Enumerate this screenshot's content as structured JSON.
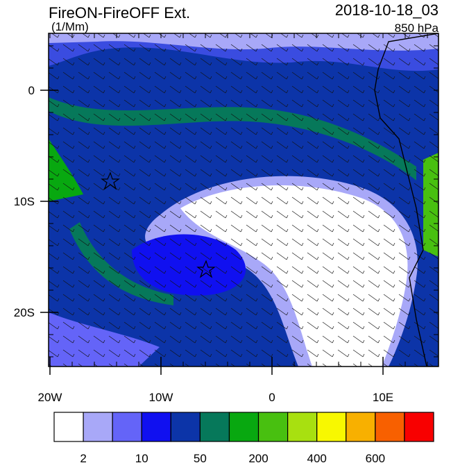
{
  "header": {
    "title": "FireON-FireOFF Ext.",
    "units": "(1/Mm)",
    "date": "2018-10-18_03",
    "level": "850 hPa"
  },
  "map": {
    "lat_labels": [
      "0",
      "10S",
      "20S"
    ],
    "lon_labels": [
      "20W",
      "10W",
      "0",
      "10E"
    ]
  },
  "colorbar": {
    "colors": [
      "#ffffff",
      "#a8a8f8",
      "#6464f8",
      "#1010f0",
      "#0c34a8",
      "#06785a",
      "#08a810",
      "#48c010",
      "#a8e010",
      "#f8f800",
      "#f8b000",
      "#f86000",
      "#f80000"
    ],
    "labels": [
      "2",
      "10",
      "50",
      "200",
      "400",
      "600"
    ]
  }
}
